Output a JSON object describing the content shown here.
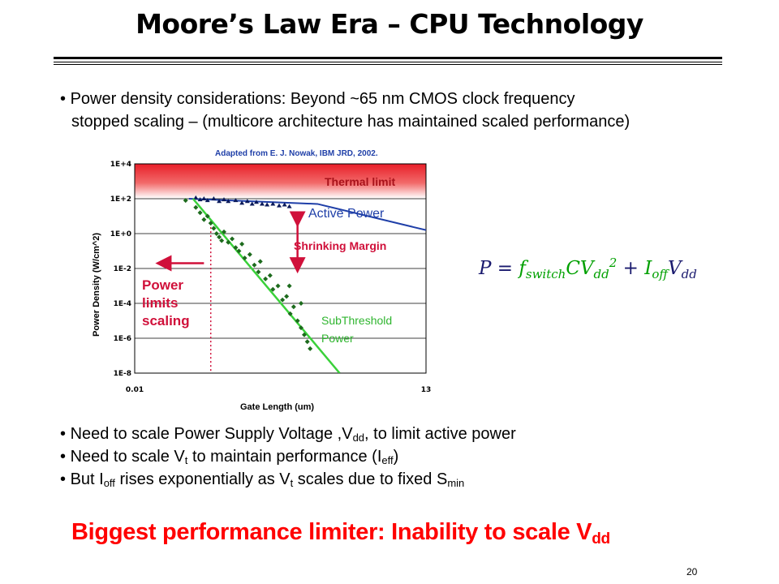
{
  "slide": {
    "title": "Moore’s Law Era – CPU Technology",
    "page_number": "20"
  },
  "bullets": {
    "b1_line1": "Power density considerations:  Beyond ~65 nm CMOS clock frequency",
    "b1_line2": "stopped scaling – (multicore architecture has maintained scaled performance)",
    "b2": {
      "before": "Need to scale Power Supply Voltage ,V",
      "sub": "dd",
      "after": ", to limit active power"
    },
    "b3": {
      "before": "Need to scale V",
      "sub1": "t",
      "middle": " to maintain performance (I",
      "sub2": "eff",
      "after": ")"
    },
    "b4": {
      "before": "But I",
      "sub1": "off",
      "middle1": " rises exponentially as V",
      "sub2": "t",
      "middle2": " scales due to fixed S",
      "sub3": "min"
    }
  },
  "conclusion": {
    "text": "Biggest performance limiter: Inability to scale V",
    "sub": "dd"
  },
  "formula": {
    "lhs": "P = ",
    "f": "f",
    "f_sub": "switch",
    "c": "CV",
    "v_sub": "dd",
    "v_sup": "2",
    "plus": " + ",
    "i": "I",
    "i_sub": "off",
    "v2": "V",
    "v2_sub": "dd"
  },
  "colors": {
    "thermal_band": "#e8202a",
    "active_power_line": "#1f3fa8",
    "subthreshold_line": "#3ad13a",
    "margin_arrow": "#d0103a",
    "title_text": "#000000",
    "conclusion_text": "#ff0000"
  },
  "chart_data": {
    "type": "scatter",
    "source": "Adapted from E. J. Nowak, IBM JRD, 2002.",
    "xlabel": "Gate Length (um)",
    "ylabel": "Power Density (W/cm^2)",
    "x_ticks": [
      "0.01",
      "13"
    ],
    "y_ticks": [
      "1E+4",
      "1E+2",
      "1E+0",
      "1E-2",
      "1E-4",
      "1E-6",
      "1E-8"
    ],
    "ylim_exp": [
      -8,
      4
    ],
    "xlim": [
      0.01,
      13
    ],
    "log_x": true,
    "log_y": true,
    "grid": true,
    "annotations": {
      "thermal_limit": "Thermal limit",
      "active_power": "Active Power",
      "shrinking_margin": "Shrinking Margin",
      "power_limits_scaling": [
        "Power",
        "limits",
        "scaling"
      ],
      "subthreshold_power": [
        "SubThreshold",
        "Power"
      ]
    },
    "active_power_line": [
      [
        0.038,
        2.0
      ],
      [
        0.9,
        1.7
      ],
      [
        13,
        0.2
      ]
    ],
    "active_power_points": [
      [
        0.045,
        2.05
      ],
      [
        0.05,
        1.95
      ],
      [
        0.055,
        2.0
      ],
      [
        0.06,
        1.9
      ],
      [
        0.07,
        2.0
      ],
      [
        0.08,
        1.85
      ],
      [
        0.09,
        1.95
      ],
      [
        0.1,
        1.85
      ],
      [
        0.12,
        1.9
      ],
      [
        0.14,
        1.75
      ],
      [
        0.16,
        1.85
      ],
      [
        0.18,
        1.7
      ],
      [
        0.2,
        1.8
      ],
      [
        0.23,
        1.7
      ],
      [
        0.26,
        1.65
      ],
      [
        0.3,
        1.7
      ],
      [
        0.35,
        1.6
      ],
      [
        0.4,
        1.65
      ],
      [
        0.45,
        1.55
      ]
    ],
    "subthreshold_line": [
      [
        0.042,
        2.0
      ],
      [
        1.55,
        -8.0
      ]
    ],
    "subthreshold_points": [
      [
        0.035,
        1.9
      ],
      [
        0.045,
        1.5
      ],
      [
        0.05,
        1.2
      ],
      [
        0.055,
        0.8
      ],
      [
        0.06,
        1.0
      ],
      [
        0.065,
        0.6
      ],
      [
        0.07,
        0.3
      ],
      [
        0.075,
        0.0
      ],
      [
        0.08,
        -0.2
      ],
      [
        0.085,
        -0.4
      ],
      [
        0.09,
        0.1
      ],
      [
        0.1,
        -0.5
      ],
      [
        0.11,
        -0.3
      ],
      [
        0.12,
        -0.8
      ],
      [
        0.13,
        -1.0
      ],
      [
        0.14,
        -0.6
      ],
      [
        0.15,
        -1.4
      ],
      [
        0.17,
        -1.2
      ],
      [
        0.19,
        -1.8
      ],
      [
        0.21,
        -2.2
      ],
      [
        0.22,
        -1.6
      ],
      [
        0.25,
        -2.6
      ],
      [
        0.28,
        -2.4
      ],
      [
        0.3,
        -3.2
      ],
      [
        0.34,
        -3.0
      ],
      [
        0.38,
        -3.8
      ],
      [
        0.42,
        -3.6
      ],
      [
        0.46,
        -4.6
      ],
      [
        0.5,
        -4.2
      ],
      [
        0.55,
        -5.0
      ],
      [
        0.6,
        -5.4
      ],
      [
        0.65,
        -5.8
      ],
      [
        0.7,
        -6.2
      ],
      [
        0.75,
        -6.6
      ],
      [
        0.6,
        -4.0
      ],
      [
        0.45,
        -3.0
      ]
    ],
    "cutoff_x": 0.065,
    "margin_arrow": {
      "x": 0.55,
      "y_top": 1.1,
      "y_bottom": -2.1
    },
    "arrow_left": {
      "x_from": 0.055,
      "x_to": 0.018,
      "y": -1.7
    }
  }
}
